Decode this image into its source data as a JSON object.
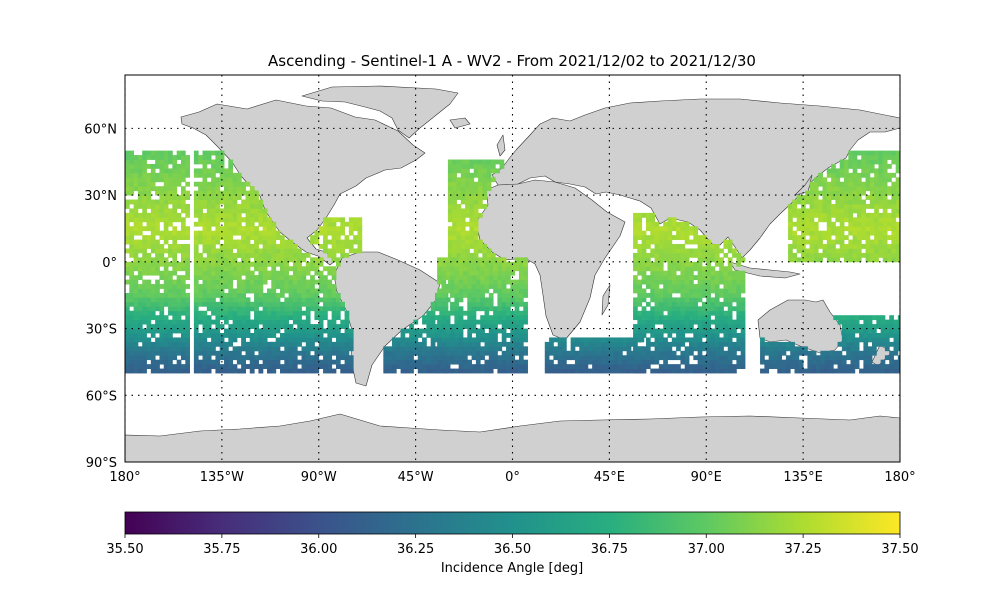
{
  "title": "Ascending - Sentinel-1 A - WV2 - From 2021/12/02 to 2021/12/30",
  "map": {
    "projection": "PlateCarree",
    "lon_range": [
      -180,
      180
    ],
    "lat_range": [
      -90,
      90
    ],
    "land_color": "#d0d0d0",
    "coastline_color": "#333333",
    "gridline_style": "dotted black",
    "x_ticks": [
      {
        "value": -180,
        "label": "180°"
      },
      {
        "value": -135,
        "label": "135°W"
      },
      {
        "value": -90,
        "label": "90°W"
      },
      {
        "value": -45,
        "label": "45°W"
      },
      {
        "value": 0,
        "label": "0°"
      },
      {
        "value": 45,
        "label": "45°E"
      },
      {
        "value": 90,
        "label": "90°E"
      },
      {
        "value": 135,
        "label": "135°E"
      },
      {
        "value": 180,
        "label": "180°"
      }
    ],
    "y_ticks": [
      {
        "value": 60,
        "label": "60°N"
      },
      {
        "value": 30,
        "label": "30°N"
      },
      {
        "value": 0,
        "label": "0°"
      },
      {
        "value": -30,
        "label": "30°S"
      },
      {
        "value": -60,
        "label": "60°S"
      },
      {
        "value": -90,
        "label": "90°S"
      }
    ]
  },
  "colorbar": {
    "label": "Incidence Angle [deg]",
    "cmap": "viridis",
    "vmin": 35.5,
    "vmax": 37.5,
    "orientation": "horizontal",
    "ticks": [
      "35.50",
      "35.75",
      "36.00",
      "36.25",
      "36.50",
      "36.75",
      "37.00",
      "37.25",
      "37.50"
    ]
  },
  "chart_data": {
    "type": "heatmap",
    "title": "Ascending - Sentinel-1 A - WV2 - From 2021/12/02 to 2021/12/30",
    "variable": "Incidence Angle [deg]",
    "value_range": [
      35.5,
      37.5
    ],
    "lat_coverage": [
      -50,
      50
    ],
    "value_by_latitude": [
      {
        "lat": 50,
        "value": 37.0
      },
      {
        "lat": 30,
        "value": 37.15
      },
      {
        "lat": 15,
        "value": 37.25
      },
      {
        "lat": 0,
        "value": 37.15
      },
      {
        "lat": -15,
        "value": 37.0
      },
      {
        "lat": -30,
        "value": 36.6
      },
      {
        "lat": -40,
        "value": 36.3
      },
      {
        "lat": -50,
        "value": 36.1
      }
    ],
    "swaths": [
      {
        "lon_range": [
          -180,
          -150
        ],
        "lat_range": [
          -50,
          50
        ]
      },
      {
        "lon_range": [
          -148,
          -110
        ],
        "lat_range": [
          -50,
          50
        ]
      },
      {
        "lon_range": [
          -128,
          -70
        ],
        "lat_range": [
          -50,
          20
        ]
      },
      {
        "lon_range": [
          -60,
          -30
        ],
        "lat_range": [
          -50,
          -10
        ]
      },
      {
        "lon_range": [
          -30,
          -3
        ],
        "lat_range": [
          -10,
          45
        ]
      },
      {
        "lon_range": [
          -35,
          7
        ],
        "lat_range": [
          -50,
          2
        ]
      },
      {
        "lon_range": [
          15,
          60
        ],
        "lat_range": [
          -50,
          -35
        ]
      },
      {
        "lon_range": [
          56,
          107
        ],
        "lat_range": [
          -50,
          22
        ]
      },
      {
        "lon_range": [
          115,
          180
        ],
        "lat_range": [
          -50,
          -25
        ]
      },
      {
        "lon_range": [
          128,
          180
        ],
        "lat_range": [
          0,
          50
        ]
      }
    ]
  }
}
